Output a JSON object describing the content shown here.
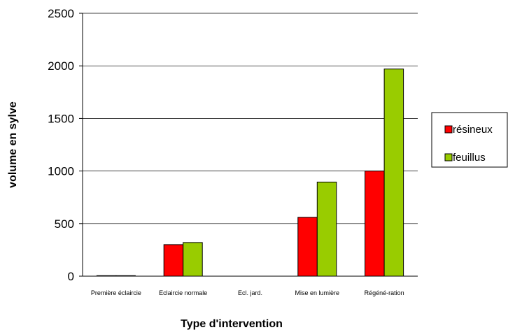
{
  "chart_data": {
    "type": "bar",
    "title": "",
    "xlabel": "Type d'intervention",
    "ylabel": "volume en sylve",
    "ylim": [
      0,
      2500
    ],
    "yticks": [
      0,
      500,
      1000,
      1500,
      2000,
      2500
    ],
    "grid": true,
    "legend_position": "right",
    "categories": [
      "Première éclaircie",
      "Eclaircie normale",
      "Ecl. jard.",
      "Mise en lumière",
      "Régéné-ration"
    ],
    "series": [
      {
        "name": "résineux",
        "color": "#ff0000",
        "values": [
          5,
          300,
          0,
          560,
          1000
        ]
      },
      {
        "name": "feuillus",
        "color": "#99cc00",
        "values": [
          5,
          320,
          0,
          895,
          1970
        ]
      }
    ]
  }
}
